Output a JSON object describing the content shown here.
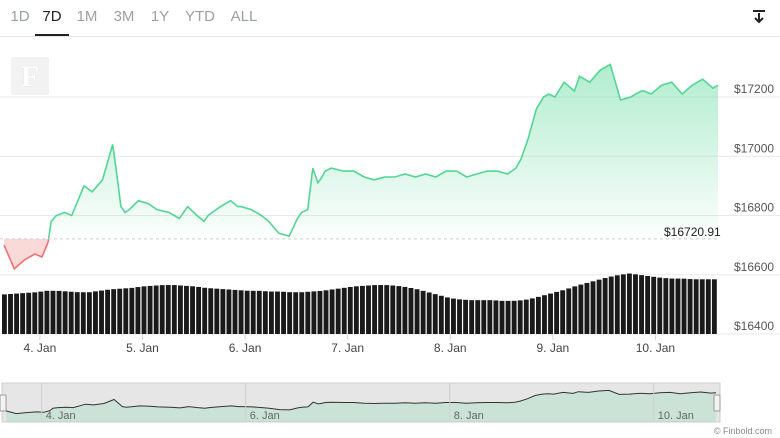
{
  "tabs": [
    "1D",
    "7D",
    "1M",
    "3M",
    "1Y",
    "YTD",
    "ALL"
  ],
  "active_tab": "7D",
  "download_icon": "download-arrow-icon",
  "logo_letter": "F",
  "credit": "© Finbold.com",
  "colors": {
    "up": "#52d694",
    "down": "#f07070",
    "volume": "#1a1a1a",
    "grid": "#e9e9e9"
  },
  "chart_data": {
    "type": "area",
    "title": "",
    "xlabel": "",
    "ylabel": "",
    "x_tick_labels": [
      "4. Jan",
      "5. Jan",
      "6. Jan",
      "7. Jan",
      "8. Jan",
      "9. Jan",
      "10. Jan"
    ],
    "y_tick_labels": [
      "$17200",
      "$17000",
      "$16800",
      "$16600",
      "$16400"
    ],
    "ylim": [
      16400,
      17350
    ],
    "reference_line": {
      "value": 16720.91,
      "label": "$16720.91"
    },
    "price_series_x_days": [
      3.65,
      3.75,
      3.85,
      3.95,
      4.02,
      4.08,
      4.11,
      4.16,
      4.24,
      4.31,
      4.43,
      4.51,
      4.61,
      4.71,
      4.76,
      4.79,
      4.83,
      4.87,
      4.96,
      5.06,
      5.14,
      5.26,
      5.36,
      5.44,
      5.53,
      5.6,
      5.64,
      5.76,
      5.86,
      5.93,
      5.96,
      6.06,
      6.16,
      6.23,
      6.33,
      6.43,
      6.51,
      6.55,
      6.61,
      6.66,
      6.71,
      6.75,
      6.78,
      6.84,
      6.96,
      7.06,
      7.16,
      7.26,
      7.36,
      7.46,
      7.56,
      7.66,
      7.76,
      7.86,
      7.96,
      8.06,
      8.16,
      8.26,
      8.36,
      8.46,
      8.56,
      8.64,
      8.69,
      8.76,
      8.84,
      8.91,
      8.96,
      9.02,
      9.11,
      9.21,
      9.26,
      9.36,
      9.46,
      9.56,
      9.66,
      9.76,
      9.81,
      9.86,
      9.89,
      9.96,
      10.06,
      10.16,
      10.26,
      10.36,
      10.46,
      10.56,
      10.61
    ],
    "price_series_y": [
      16700,
      16620,
      16650,
      16670,
      16660,
      16710,
      16780,
      16800,
      16810,
      16800,
      16900,
      16880,
      16920,
      17040,
      16910,
      16830,
      16810,
      16820,
      16850,
      16840,
      16820,
      16810,
      16790,
      16830,
      16800,
      16780,
      16800,
      16830,
      16850,
      16830,
      16830,
      16820,
      16800,
      16780,
      16740,
      16730,
      16790,
      16810,
      16820,
      16960,
      16910,
      16930,
      16950,
      16960,
      16950,
      16950,
      16930,
      16920,
      16930,
      16930,
      16940,
      16930,
      16940,
      16930,
      16950,
      16950,
      16930,
      16940,
      16950,
      16950,
      16940,
      16960,
      16990,
      17060,
      17160,
      17200,
      17210,
      17200,
      17250,
      17220,
      17270,
      17250,
      17290,
      17310,
      17190,
      17200,
      17210,
      17220,
      17220,
      17210,
      17240,
      17250,
      17210,
      17240,
      17260,
      17230,
      17240
    ],
    "volume_note": "relative trading volume bars under the price line; axis not labelled",
    "volume_relative": [
      0.55,
      0.56,
      0.57,
      0.58,
      0.6,
      0.6,
      0.59,
      0.58,
      0.58,
      0.6,
      0.62,
      0.63,
      0.64,
      0.66,
      0.67,
      0.68,
      0.68,
      0.67,
      0.66,
      0.64,
      0.63,
      0.62,
      0.61,
      0.6,
      0.6,
      0.59,
      0.59,
      0.58,
      0.58,
      0.59,
      0.6,
      0.62,
      0.64,
      0.66,
      0.67,
      0.68,
      0.68,
      0.67,
      0.65,
      0.62,
      0.58,
      0.54,
      0.5,
      0.48,
      0.47,
      0.47,
      0.47,
      0.46,
      0.46,
      0.47,
      0.5,
      0.54,
      0.58,
      0.62,
      0.67,
      0.71,
      0.75,
      0.79,
      0.82,
      0.84,
      0.82,
      0.8,
      0.78,
      0.77,
      0.77,
      0.76,
      0.76,
      0.76
    ],
    "navigator": {
      "x_tick_labels": [
        "4. Jan",
        "6. Jan",
        "8. Jan",
        "10. Jan"
      ]
    }
  }
}
